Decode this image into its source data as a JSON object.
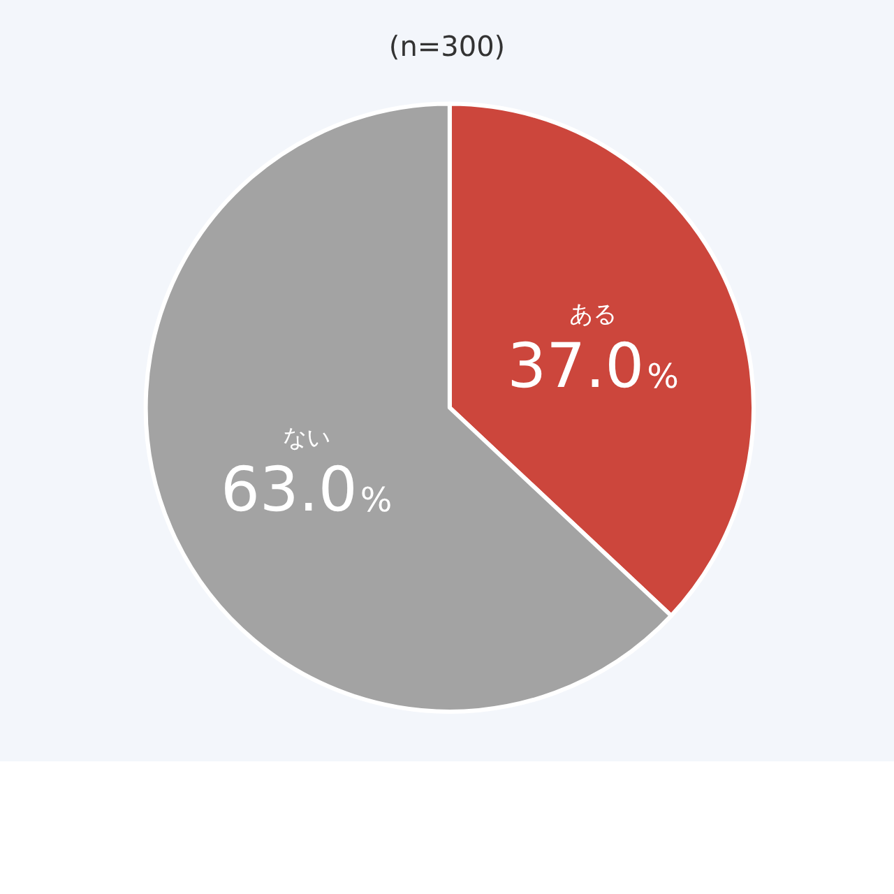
{
  "chart_data": {
    "type": "pie",
    "title": "(n=300)",
    "categories": [
      "ある",
      "ない"
    ],
    "values": [
      37.0,
      63.0
    ],
    "colors": [
      "#cc463c",
      "#a3a3a3"
    ],
    "value_labels": [
      "37.0%",
      "63.0%"
    ],
    "legend": false
  }
}
